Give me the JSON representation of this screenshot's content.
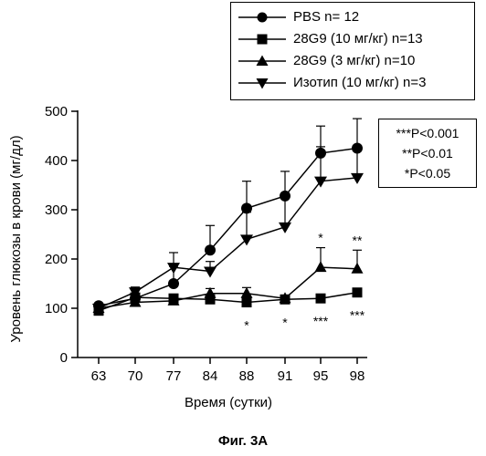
{
  "chart_data": {
    "type": "line",
    "categories": [
      "63",
      "70",
      "77",
      "84",
      "88",
      "91",
      "95",
      "98"
    ],
    "ylabel": "Уровень глюкозы в крови (мг/дл)",
    "xlabel": "Время (сутки)",
    "ylim": [
      0,
      500
    ],
    "yticks": [
      "0",
      "100",
      "200",
      "300",
      "400",
      "500"
    ],
    "series": [
      {
        "name": "PBS n= 12",
        "marker": "circle",
        "values": [
          105,
          120,
          150,
          218,
          303,
          328,
          415,
          425
        ],
        "errors": [
          5,
          10,
          35,
          50,
          55,
          50,
          55,
          60
        ]
      },
      {
        "name": "28G9 (10 мг/кг) n=13",
        "marker": "square",
        "values": [
          95,
          122,
          120,
          118,
          112,
          118,
          120,
          132
        ],
        "errors": [
          5,
          8,
          8,
          8,
          10,
          5,
          8,
          8
        ]
      },
      {
        "name": "28G9 (3 мг/кг) n=10",
        "marker": "triangle-up",
        "values": [
          100,
          112,
          115,
          130,
          130,
          120,
          183,
          180
        ],
        "errors": [
          8,
          8,
          8,
          10,
          12,
          5,
          40,
          38
        ]
      },
      {
        "name": "Изотип (10 мг/кг) n=3",
        "marker": "triangle-down",
        "values": [
          100,
          133,
          183,
          175,
          240,
          265,
          358,
          365
        ],
        "errors": [
          5,
          10,
          30,
          20,
          55,
          60,
          70,
          65
        ]
      }
    ],
    "significance_marks": [
      {
        "category": "88",
        "upper": "",
        "lower": "*"
      },
      {
        "category": "91",
        "upper": "",
        "lower": "*"
      },
      {
        "category": "95",
        "upper": "*",
        "lower": "***"
      },
      {
        "category": "98",
        "upper": "**",
        "lower": "***"
      }
    ],
    "legend_position": "top-right"
  },
  "stats_legend": [
    "***P<0.001",
    "**P<0.01",
    "*P<0.05"
  ],
  "caption": "Фиг. 3А"
}
